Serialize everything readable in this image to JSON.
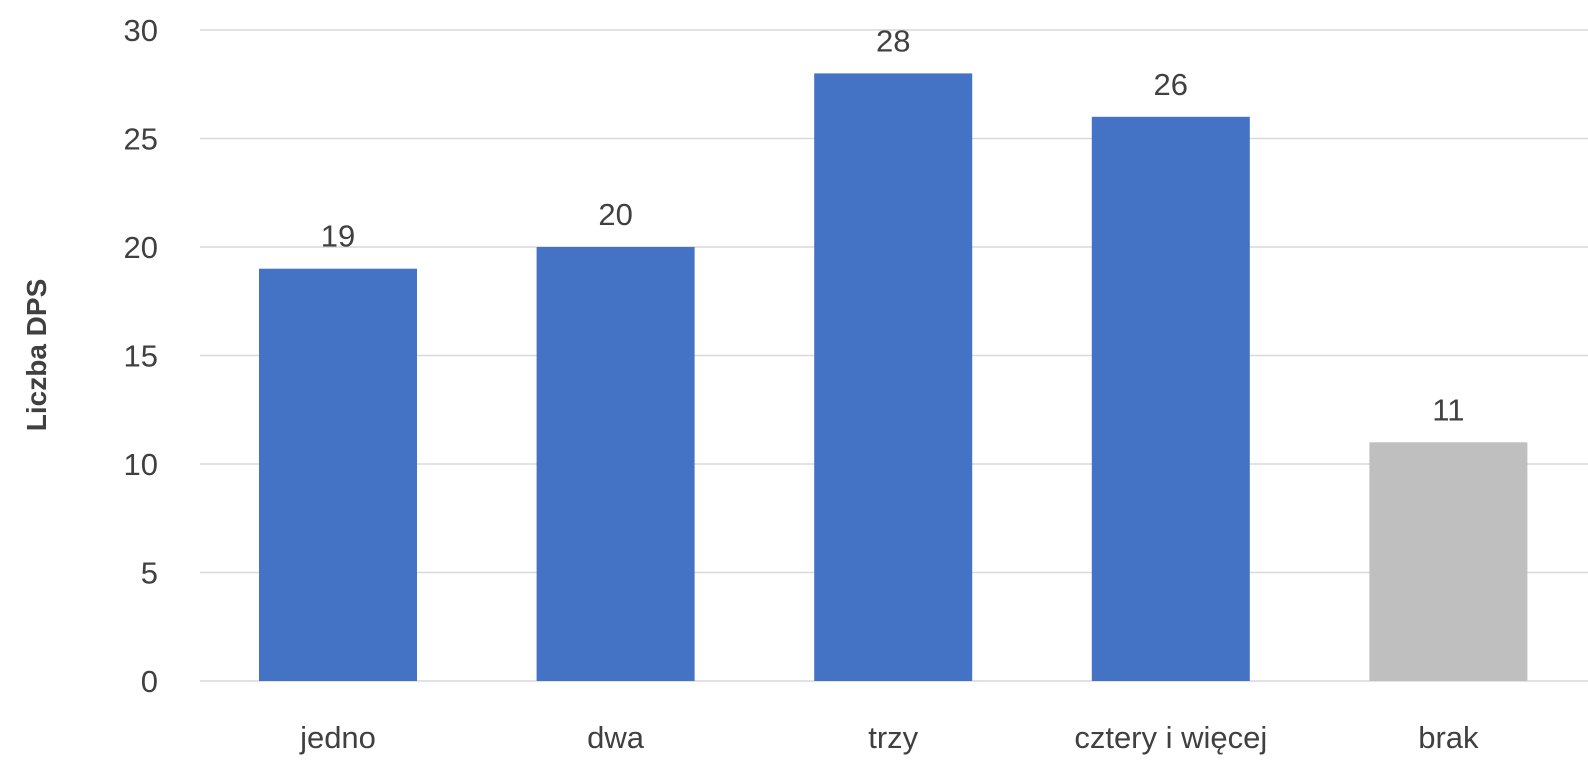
{
  "chart_data": {
    "type": "bar",
    "categories": [
      "jedno",
      "dwa",
      "trzy",
      "cztery i więcej",
      "brak"
    ],
    "values": [
      19,
      20,
      28,
      26,
      11
    ],
    "bar_colors": [
      "#4472c4",
      "#4472c4",
      "#4472c4",
      "#4472c4",
      "#bfbfbf"
    ],
    "title": "",
    "xlabel": "",
    "ylabel": "Liczba DPS",
    "ylim": [
      0,
      30
    ],
    "yticks": [
      0,
      5,
      10,
      15,
      20,
      25,
      30
    ],
    "grid": true,
    "legend": "none",
    "data_labels": true
  }
}
